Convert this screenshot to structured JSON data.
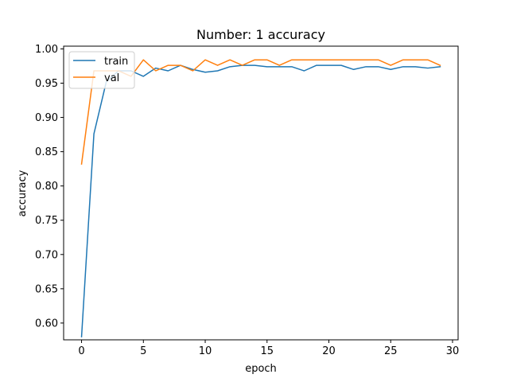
{
  "chart_data": {
    "type": "line",
    "title": "Number: 1 accuracy",
    "xlabel": "epoch",
    "ylabel": "accuracy",
    "xlim": [
      -1.45,
      30.45
    ],
    "ylim": [
      0.5755,
      1.004
    ],
    "xticks": [
      0,
      5,
      10,
      15,
      20,
      25,
      30
    ],
    "yticks": [
      0.6,
      0.65,
      0.7,
      0.75,
      0.8,
      0.85,
      0.9,
      0.95,
      1.0
    ],
    "xtick_labels": [
      "0",
      "5",
      "10",
      "15",
      "20",
      "25",
      "30"
    ],
    "ytick_labels": [
      "0.60",
      "0.65",
      "0.70",
      "0.75",
      "0.80",
      "0.85",
      "0.90",
      "0.95",
      "1.00"
    ],
    "legend_position": "top-left",
    "grid": false,
    "x": [
      0,
      1,
      2,
      3,
      4,
      5,
      6,
      7,
      8,
      9,
      10,
      11,
      12,
      13,
      14,
      15,
      16,
      17,
      18,
      19,
      20,
      21,
      22,
      23,
      24,
      25,
      26,
      27,
      28,
      29
    ],
    "series": [
      {
        "name": "train",
        "color": "#1f77b4",
        "values": [
          0.58,
          0.876,
          0.952,
          0.968,
          0.968,
          0.96,
          0.972,
          0.968,
          0.976,
          0.97,
          0.966,
          0.968,
          0.974,
          0.976,
          0.976,
          0.974,
          0.974,
          0.974,
          0.968,
          0.976,
          0.976,
          0.976,
          0.97,
          0.974,
          0.974,
          0.97,
          0.974,
          0.974,
          0.972,
          0.974
        ]
      },
      {
        "name": "val",
        "color": "#ff7f0e",
        "values": [
          0.832,
          0.968,
          0.968,
          0.968,
          0.96,
          0.984,
          0.968,
          0.976,
          0.976,
          0.968,
          0.984,
          0.976,
          0.984,
          0.976,
          0.984,
          0.984,
          0.976,
          0.984,
          0.984,
          0.984,
          0.984,
          0.984,
          0.984,
          0.984,
          0.984,
          0.976,
          0.984,
          0.984,
          0.984,
          0.976
        ]
      }
    ]
  }
}
